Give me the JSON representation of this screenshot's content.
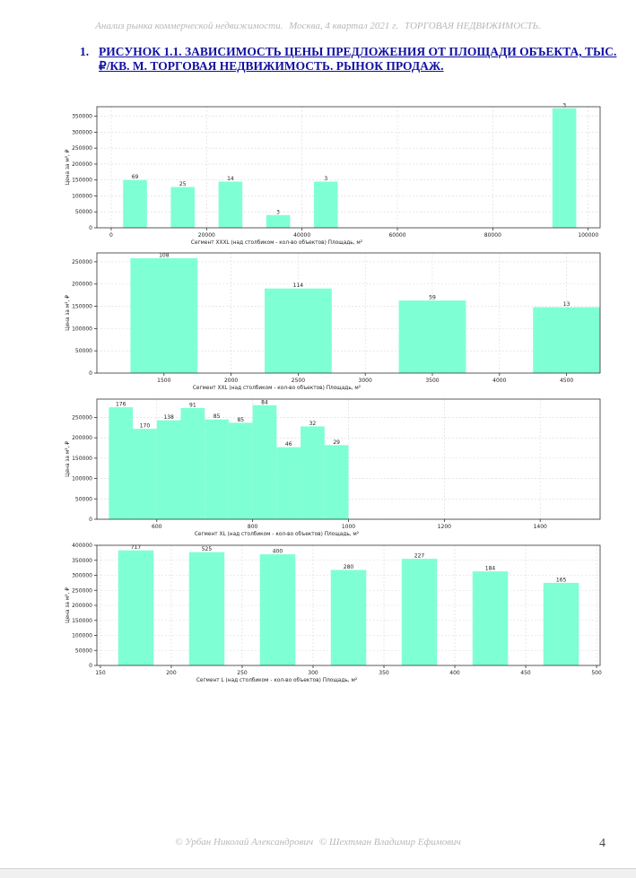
{
  "header": {
    "report": "Анализ рынка коммерческой недвижимости.",
    "place_period": "Москва,  4 квартал 2021 г.",
    "section": "ТОРГОВАЯ НЕДВИЖИМОСТЬ."
  },
  "figure": {
    "number": "1.",
    "title": "РИСУНОК 1.1. ЗАВИСИМОСТЬ ЦЕНЫ ПРЕДЛОЖЕНИЯ ОТ ПЛОЩАДИ ОБЪЕКТА, ТЫС. ₽/КВ. М. ТОРГОВАЯ НЕДВИЖИМОСТЬ. РЫНОК ПРОДАЖ."
  },
  "footer": {
    "author1": "© Урбан Николай Александрович",
    "author2": "© Шехтман Владимир Ефимович",
    "page_number": "4"
  },
  "colors": {
    "bar": "#7fffd4",
    "grid": "#d9d9d9",
    "axis": "#333333",
    "heading": "#1010a0"
  },
  "chart_data": [
    {
      "type": "bar",
      "title": "",
      "xlabel": "Сегмент XXXL (над столбиком - кол-во объектов)   Площадь, м²",
      "ylabel": "Цена за м², ₽",
      "xlim": [
        -3000,
        102500
      ],
      "ylim": [
        0,
        380000
      ],
      "xticks": [
        0,
        20000,
        40000,
        60000,
        80000,
        100000
      ],
      "yticks": [
        0,
        50000,
        100000,
        150000,
        200000,
        250000,
        300000,
        350000
      ],
      "bar_width": 5000,
      "grid": true,
      "bars": [
        {
          "x": 5000,
          "value": 150000,
          "label": "69"
        },
        {
          "x": 15000,
          "value": 128000,
          "label": "25"
        },
        {
          "x": 25000,
          "value": 145000,
          "label": "14"
        },
        {
          "x": 35000,
          "value": 40000,
          "label": "3"
        },
        {
          "x": 45000,
          "value": 145000,
          "label": "3"
        },
        {
          "x": 95000,
          "value": 375000,
          "label": "3"
        }
      ]
    },
    {
      "type": "bar",
      "title": "",
      "xlabel": "Сегмент XXL (над столбиком - кол-во объектов)   Площадь, м²",
      "ylabel": "Цена за м², ₽",
      "xlim": [
        1000,
        4750
      ],
      "ylim": [
        0,
        270000
      ],
      "xticks": [
        1500,
        2000,
        2500,
        3000,
        3500,
        4000,
        4500
      ],
      "yticks": [
        0,
        50000,
        100000,
        150000,
        200000,
        250000
      ],
      "bar_width": 500,
      "grid": true,
      "bars": [
        {
          "x": 1500,
          "value": 258000,
          "label": "108"
        },
        {
          "x": 2500,
          "value": 190000,
          "label": "114"
        },
        {
          "x": 3500,
          "value": 163000,
          "label": "59"
        },
        {
          "x": 4500,
          "value": 148000,
          "label": "13"
        }
      ]
    },
    {
      "type": "bar",
      "title": "",
      "xlabel": "Сегмент XL (над столбиком - кол-во объектов)   Площадь, м²",
      "ylabel": "Цена за м², ₽",
      "xlim": [
        475,
        1525
      ],
      "ylim": [
        0,
        295000
      ],
      "xticks": [
        600,
        800,
        1000,
        1200,
        1400
      ],
      "yticks": [
        0,
        50000,
        100000,
        150000,
        200000,
        250000
      ],
      "bar_width": 50,
      "grid": true,
      "bars": [
        {
          "x": 525,
          "value": 275000,
          "label": "176"
        },
        {
          "x": 575,
          "value": 222000,
          "label": "170"
        },
        {
          "x": 625,
          "value": 243000,
          "label": "138"
        },
        {
          "x": 675,
          "value": 273000,
          "label": "91"
        },
        {
          "x": 725,
          "value": 245000,
          "label": "85"
        },
        {
          "x": 775,
          "value": 237000,
          "label": "85"
        },
        {
          "x": 825,
          "value": 280000,
          "label": "84"
        },
        {
          "x": 875,
          "value": 177000,
          "label": "46"
        },
        {
          "x": 925,
          "value": 228000,
          "label": "32"
        },
        {
          "x": 975,
          "value": 182000,
          "label": "29"
        }
      ]
    },
    {
      "type": "bar",
      "title": "",
      "xlabel": "Сегмент L (над столбиком - кол-во объектов)   Площадь, м²",
      "ylabel": "Цена за м², ₽",
      "xlim": [
        147.5,
        502.5
      ],
      "ylim": [
        0,
        400000
      ],
      "xticks": [
        150,
        200,
        250,
        300,
        350,
        400,
        450,
        500
      ],
      "yticks": [
        0,
        50000,
        100000,
        150000,
        200000,
        250000,
        300000,
        350000,
        400000
      ],
      "bar_width": 25,
      "grid": true,
      "bars": [
        {
          "x": 175,
          "value": 383000,
          "label": "717"
        },
        {
          "x": 225,
          "value": 377000,
          "label": "525"
        },
        {
          "x": 275,
          "value": 370000,
          "label": "400"
        },
        {
          "x": 325,
          "value": 318000,
          "label": "280"
        },
        {
          "x": 375,
          "value": 355000,
          "label": "227"
        },
        {
          "x": 425,
          "value": 313000,
          "label": "184"
        },
        {
          "x": 475,
          "value": 275000,
          "label": "165"
        }
      ]
    }
  ]
}
